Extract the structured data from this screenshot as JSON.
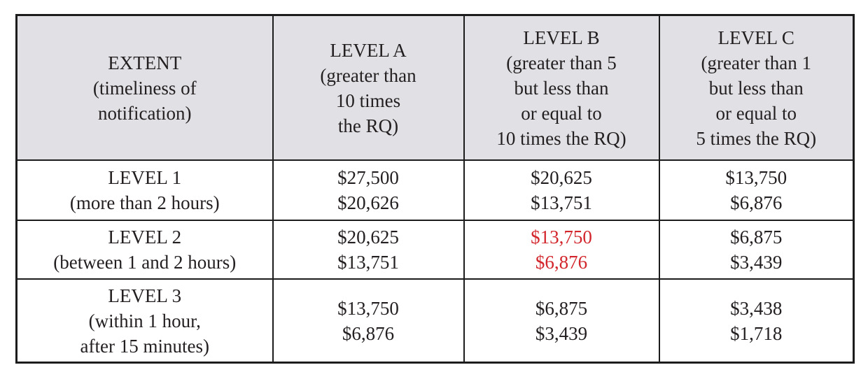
{
  "colors": {
    "highlight_red": "#d2262c",
    "header_background": "#e1e1e5",
    "border": "#1c1c1c",
    "text": "#231f20"
  },
  "table": {
    "header": {
      "extent": "EXTENT\n(timeliness of\nnotification)",
      "level_a": "LEVEL A\n(greater than\n10 times\nthe RQ)",
      "level_b": "LEVEL B\n(greater than 5\nbut less than\nor equal to\n10 times the RQ)",
      "level_c": "LEVEL C\n(greater than 1\nbut less than\nor equal to\n5 times the RQ)"
    },
    "rows": [
      {
        "extent": "LEVEL 1\n(more than 2 hours)",
        "level_a": "$27,500\n$20,626",
        "level_b": "$20,625\n$13,751",
        "level_c": "$13,750\n$6,876"
      },
      {
        "extent": "LEVEL 2\n(between 1 and 2 hours)",
        "level_a": "$20,625\n$13,751",
        "level_b": "$13,750\n$6,876",
        "level_c": "$6,875\n$3,439"
      },
      {
        "extent": "LEVEL 3\n(within 1 hour,\nafter 15 minutes)",
        "level_a": "$13,750\n$6,876",
        "level_b": "$6,875\n$3,439",
        "level_c": "$3,438\n$1,718"
      }
    ]
  }
}
